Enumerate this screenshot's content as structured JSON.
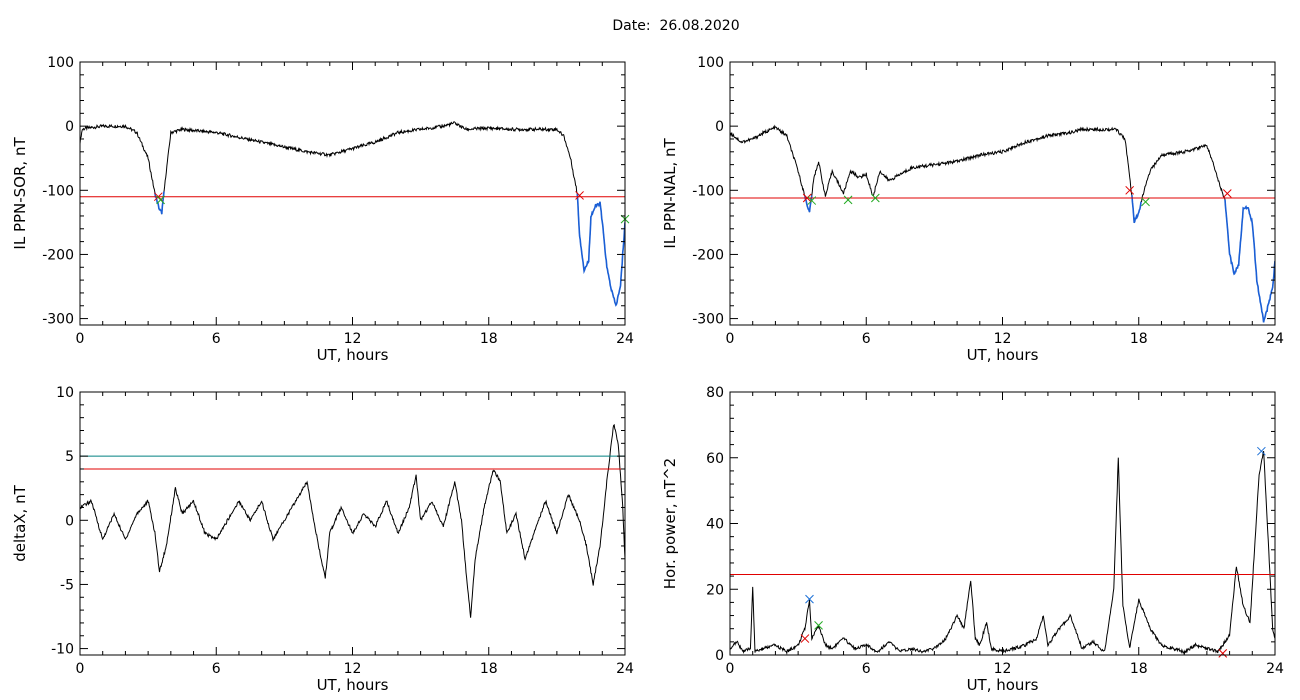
{
  "figure": {
    "title": "Date:  26.08.2020"
  },
  "colors": {
    "trace": "#000000",
    "threshold": "#e00000",
    "second_threshold": "#008080",
    "highlight": "#1a5fd6",
    "marker_red": "#e00000",
    "marker_green": "#22aa22",
    "marker_blue": "#1a6fd6"
  },
  "chart_data": [
    {
      "id": "il-sor",
      "type": "line",
      "ylabel": "IL PPN-SOR, nT",
      "xlabel": "UT, hours",
      "xlim": [
        0,
        24
      ],
      "ylim": [
        -310,
        100
      ],
      "xticks": [
        0,
        6,
        12,
        18,
        24
      ],
      "yticks": [
        100,
        0,
        -100,
        -200,
        -300
      ],
      "grid": false,
      "series": [
        {
          "points": [
            [
              0,
              -25
            ],
            [
              0.1,
              -5
            ],
            [
              0.3,
              -3
            ],
            [
              1,
              0
            ],
            [
              2,
              0
            ],
            [
              2.5,
              -10
            ],
            [
              3,
              -50
            ],
            [
              3.3,
              -105
            ],
            [
              3.5,
              -130
            ],
            [
              3.6,
              -135
            ],
            [
              3.8,
              -70
            ],
            [
              4.0,
              -10
            ],
            [
              4.5,
              -5
            ],
            [
              6,
              -10
            ],
            [
              8,
              -25
            ],
            [
              10,
              -40
            ],
            [
              11,
              -45
            ],
            [
              12,
              -35
            ],
            [
              13,
              -25
            ],
            [
              14,
              -10
            ],
            [
              15,
              -5
            ],
            [
              16,
              0
            ],
            [
              16.5,
              5
            ],
            [
              17,
              -5
            ],
            [
              18,
              -3
            ],
            [
              19,
              -5
            ],
            [
              20,
              -5
            ],
            [
              21,
              -5
            ],
            [
              21.3,
              -15
            ],
            [
              21.6,
              -50
            ],
            [
              21.9,
              -105
            ],
            [
              22.0,
              -170
            ],
            [
              22.2,
              -225
            ],
            [
              22.4,
              -210
            ],
            [
              22.5,
              -140
            ],
            [
              22.7,
              -125
            ],
            [
              22.9,
              -120
            ],
            [
              23.0,
              -150
            ],
            [
              23.2,
              -220
            ],
            [
              23.4,
              -255
            ],
            [
              23.6,
              -280
            ],
            [
              23.8,
              -250
            ],
            [
              23.9,
              -200
            ],
            [
              24,
              -150
            ]
          ]
        }
      ],
      "threshold": -110,
      "highlight_segments": [
        [
          3.3,
          3.7
        ],
        [
          21.9,
          24
        ]
      ],
      "markers": [
        {
          "x": 3.45,
          "y": -110,
          "color": "red"
        },
        {
          "x": 3.55,
          "y": -115,
          "color": "green"
        },
        {
          "x": 22.0,
          "y": -108,
          "color": "red"
        },
        {
          "x": 24.0,
          "y": -145,
          "color": "green"
        }
      ]
    },
    {
      "id": "il-nal",
      "type": "line",
      "ylabel": "IL PPN-NAL, nT",
      "xlabel": "UT, hours",
      "xlim": [
        0,
        24
      ],
      "ylim": [
        -310,
        100
      ],
      "xticks": [
        0,
        6,
        12,
        18,
        24
      ],
      "yticks": [
        100,
        0,
        -100,
        -200,
        -300
      ],
      "grid": false,
      "series": [
        {
          "points": [
            [
              0,
              -10
            ],
            [
              0.5,
              -25
            ],
            [
              1,
              -20
            ],
            [
              1.5,
              -10
            ],
            [
              2,
              -2
            ],
            [
              2.5,
              -15
            ],
            [
              3,
              -70
            ],
            [
              3.3,
              -110
            ],
            [
              3.5,
              -135
            ],
            [
              3.7,
              -80
            ],
            [
              3.9,
              -55
            ],
            [
              4.2,
              -110
            ],
            [
              4.5,
              -70
            ],
            [
              5,
              -105
            ],
            [
              5.3,
              -70
            ],
            [
              5.7,
              -80
            ],
            [
              6,
              -75
            ],
            [
              6.3,
              -110
            ],
            [
              6.6,
              -70
            ],
            [
              7,
              -85
            ],
            [
              8,
              -65
            ],
            [
              9,
              -60
            ],
            [
              10,
              -55
            ],
            [
              11,
              -45
            ],
            [
              12,
              -40
            ],
            [
              13,
              -25
            ],
            [
              14,
              -15
            ],
            [
              15,
              -10
            ],
            [
              15.5,
              -5
            ],
            [
              16,
              -5
            ],
            [
              17,
              -5
            ],
            [
              17.4,
              -20
            ],
            [
              17.6,
              -80
            ],
            [
              17.7,
              -110
            ],
            [
              17.8,
              -150
            ],
            [
              18.0,
              -135
            ],
            [
              18.2,
              -105
            ],
            [
              18.5,
              -70
            ],
            [
              19,
              -45
            ],
            [
              20,
              -40
            ],
            [
              21,
              -30
            ],
            [
              21.3,
              -60
            ],
            [
              21.6,
              -95
            ],
            [
              21.8,
              -115
            ],
            [
              22.0,
              -200
            ],
            [
              22.2,
              -230
            ],
            [
              22.4,
              -215
            ],
            [
              22.6,
              -130
            ],
            [
              22.8,
              -125
            ],
            [
              23.0,
              -150
            ],
            [
              23.2,
              -240
            ],
            [
              23.5,
              -305
            ],
            [
              23.7,
              -280
            ],
            [
              23.9,
              -250
            ],
            [
              24,
              -210
            ]
          ]
        }
      ],
      "threshold": -112,
      "highlight_segments": [
        [
          3.3,
          3.6
        ],
        [
          17.7,
          18.1
        ],
        [
          21.8,
          24
        ]
      ],
      "markers": [
        {
          "x": 3.4,
          "y": -112,
          "color": "red"
        },
        {
          "x": 3.6,
          "y": -116,
          "color": "green"
        },
        {
          "x": 5.2,
          "y": -115,
          "color": "green"
        },
        {
          "x": 6.4,
          "y": -112,
          "color": "green"
        },
        {
          "x": 17.6,
          "y": -100,
          "color": "red"
        },
        {
          "x": 18.3,
          "y": -118,
          "color": "green"
        },
        {
          "x": 21.9,
          "y": -105,
          "color": "red"
        }
      ]
    },
    {
      "id": "deltax",
      "type": "line",
      "ylabel": "deltaX, nT",
      "xlabel": "UT, hours",
      "xlim": [
        0,
        24
      ],
      "ylim": [
        -10.5,
        10
      ],
      "xticks": [
        0,
        6,
        12,
        18,
        24
      ],
      "yticks": [
        10,
        5,
        0,
        -5,
        -10
      ],
      "grid": false,
      "series": [
        {
          "points": [
            [
              0,
              1
            ],
            [
              0.5,
              1.5
            ],
            [
              1,
              -1.5
            ],
            [
              1.5,
              0.5
            ],
            [
              2,
              -1.5
            ],
            [
              2.5,
              0.5
            ],
            [
              3,
              1.5
            ],
            [
              3.3,
              -1
            ],
            [
              3.5,
              -4
            ],
            [
              3.8,
              -2
            ],
            [
              4.2,
              2.5
            ],
            [
              4.5,
              0.5
            ],
            [
              5,
              1.5
            ],
            [
              5.5,
              -1
            ],
            [
              6,
              -1.5
            ],
            [
              6.5,
              0
            ],
            [
              7,
              1.5
            ],
            [
              7.5,
              0
            ],
            [
              8,
              1.5
            ],
            [
              8.5,
              -1.5
            ],
            [
              9,
              0
            ],
            [
              9.5,
              1.5
            ],
            [
              10,
              3
            ],
            [
              10.5,
              -2
            ],
            [
              10.8,
              -4.5
            ],
            [
              11,
              -1
            ],
            [
              11.5,
              1
            ],
            [
              12,
              -1
            ],
            [
              12.5,
              0.5
            ],
            [
              13,
              -0.5
            ],
            [
              13.5,
              1.5
            ],
            [
              14,
              -1
            ],
            [
              14.5,
              1
            ],
            [
              14.8,
              3.5
            ],
            [
              15,
              0
            ],
            [
              15.5,
              1.5
            ],
            [
              16,
              -0.5
            ],
            [
              16.5,
              3
            ],
            [
              16.8,
              0
            ],
            [
              17,
              -4
            ],
            [
              17.2,
              -7.5
            ],
            [
              17.4,
              -3
            ],
            [
              17.8,
              1
            ],
            [
              18.2,
              4
            ],
            [
              18.5,
              3
            ],
            [
              18.8,
              -1
            ],
            [
              19.2,
              0.5
            ],
            [
              19.6,
              -3
            ],
            [
              20,
              -1
            ],
            [
              20.5,
              1.5
            ],
            [
              21,
              -1
            ],
            [
              21.5,
              2
            ],
            [
              22,
              0
            ],
            [
              22.3,
              -2
            ],
            [
              22.6,
              -5
            ],
            [
              22.9,
              -2
            ],
            [
              23.2,
              3
            ],
            [
              23.5,
              7.5
            ],
            [
              23.7,
              6
            ],
            [
              23.9,
              1
            ],
            [
              24,
              -3
            ]
          ]
        }
      ],
      "threshold": 4,
      "second_threshold": 5,
      "markers": []
    },
    {
      "id": "hor-power",
      "type": "line",
      "ylabel": "Hor. power, nT^2",
      "xlabel": "UT, hours",
      "xlim": [
        0,
        24
      ],
      "ylim": [
        0,
        80
      ],
      "xticks": [
        0,
        6,
        12,
        18,
        24
      ],
      "yticks": [
        80,
        60,
        40,
        20,
        0
      ],
      "grid": false,
      "series": [
        {
          "points": [
            [
              0,
              2
            ],
            [
              0.3,
              4
            ],
            [
              0.6,
              1
            ],
            [
              0.9,
              2
            ],
            [
              1.0,
              21
            ],
            [
              1.1,
              1
            ],
            [
              1.5,
              2
            ],
            [
              2,
              3
            ],
            [
              2.5,
              1
            ],
            [
              3,
              3
            ],
            [
              3.3,
              8
            ],
            [
              3.5,
              17
            ],
            [
              3.6,
              5
            ],
            [
              3.9,
              9
            ],
            [
              4.2,
              3
            ],
            [
              4.5,
              2
            ],
            [
              5,
              5
            ],
            [
              5.5,
              2
            ],
            [
              6,
              3
            ],
            [
              6.5,
              1
            ],
            [
              7,
              4
            ],
            [
              7.5,
              1
            ],
            [
              8,
              2
            ],
            [
              8.5,
              1
            ],
            [
              9,
              2
            ],
            [
              9.5,
              5
            ],
            [
              10,
              12
            ],
            [
              10.3,
              8
            ],
            [
              10.6,
              23
            ],
            [
              10.8,
              5
            ],
            [
              11,
              3
            ],
            [
              11.3,
              10
            ],
            [
              11.5,
              2
            ],
            [
              12,
              1
            ],
            [
              12.5,
              2
            ],
            [
              13,
              3
            ],
            [
              13.5,
              5
            ],
            [
              13.8,
              12
            ],
            [
              14,
              3
            ],
            [
              14.5,
              8
            ],
            [
              15,
              12
            ],
            [
              15.5,
              2
            ],
            [
              16,
              4
            ],
            [
              16.5,
              1
            ],
            [
              16.9,
              20
            ],
            [
              17.1,
              60
            ],
            [
              17.3,
              15
            ],
            [
              17.6,
              2
            ],
            [
              18,
              17
            ],
            [
              18.5,
              8
            ],
            [
              19,
              3
            ],
            [
              19.5,
              2
            ],
            [
              20,
              1
            ],
            [
              20.5,
              3
            ],
            [
              21,
              2
            ],
            [
              21.5,
              1
            ],
            [
              22,
              6
            ],
            [
              22.3,
              27
            ],
            [
              22.6,
              15
            ],
            [
              22.9,
              10
            ],
            [
              23.3,
              55
            ],
            [
              23.5,
              62
            ],
            [
              23.7,
              35
            ],
            [
              23.9,
              8
            ],
            [
              24,
              5
            ]
          ]
        }
      ],
      "threshold": 24.5,
      "markers": [
        {
          "x": 3.3,
          "y": 5,
          "color": "red"
        },
        {
          "x": 3.5,
          "y": 17,
          "color": "blue"
        },
        {
          "x": 3.9,
          "y": 9,
          "color": "green"
        },
        {
          "x": 23.4,
          "y": 62,
          "color": "blue"
        },
        {
          "x": 21.7,
          "y": 0.5,
          "color": "red"
        }
      ]
    }
  ]
}
